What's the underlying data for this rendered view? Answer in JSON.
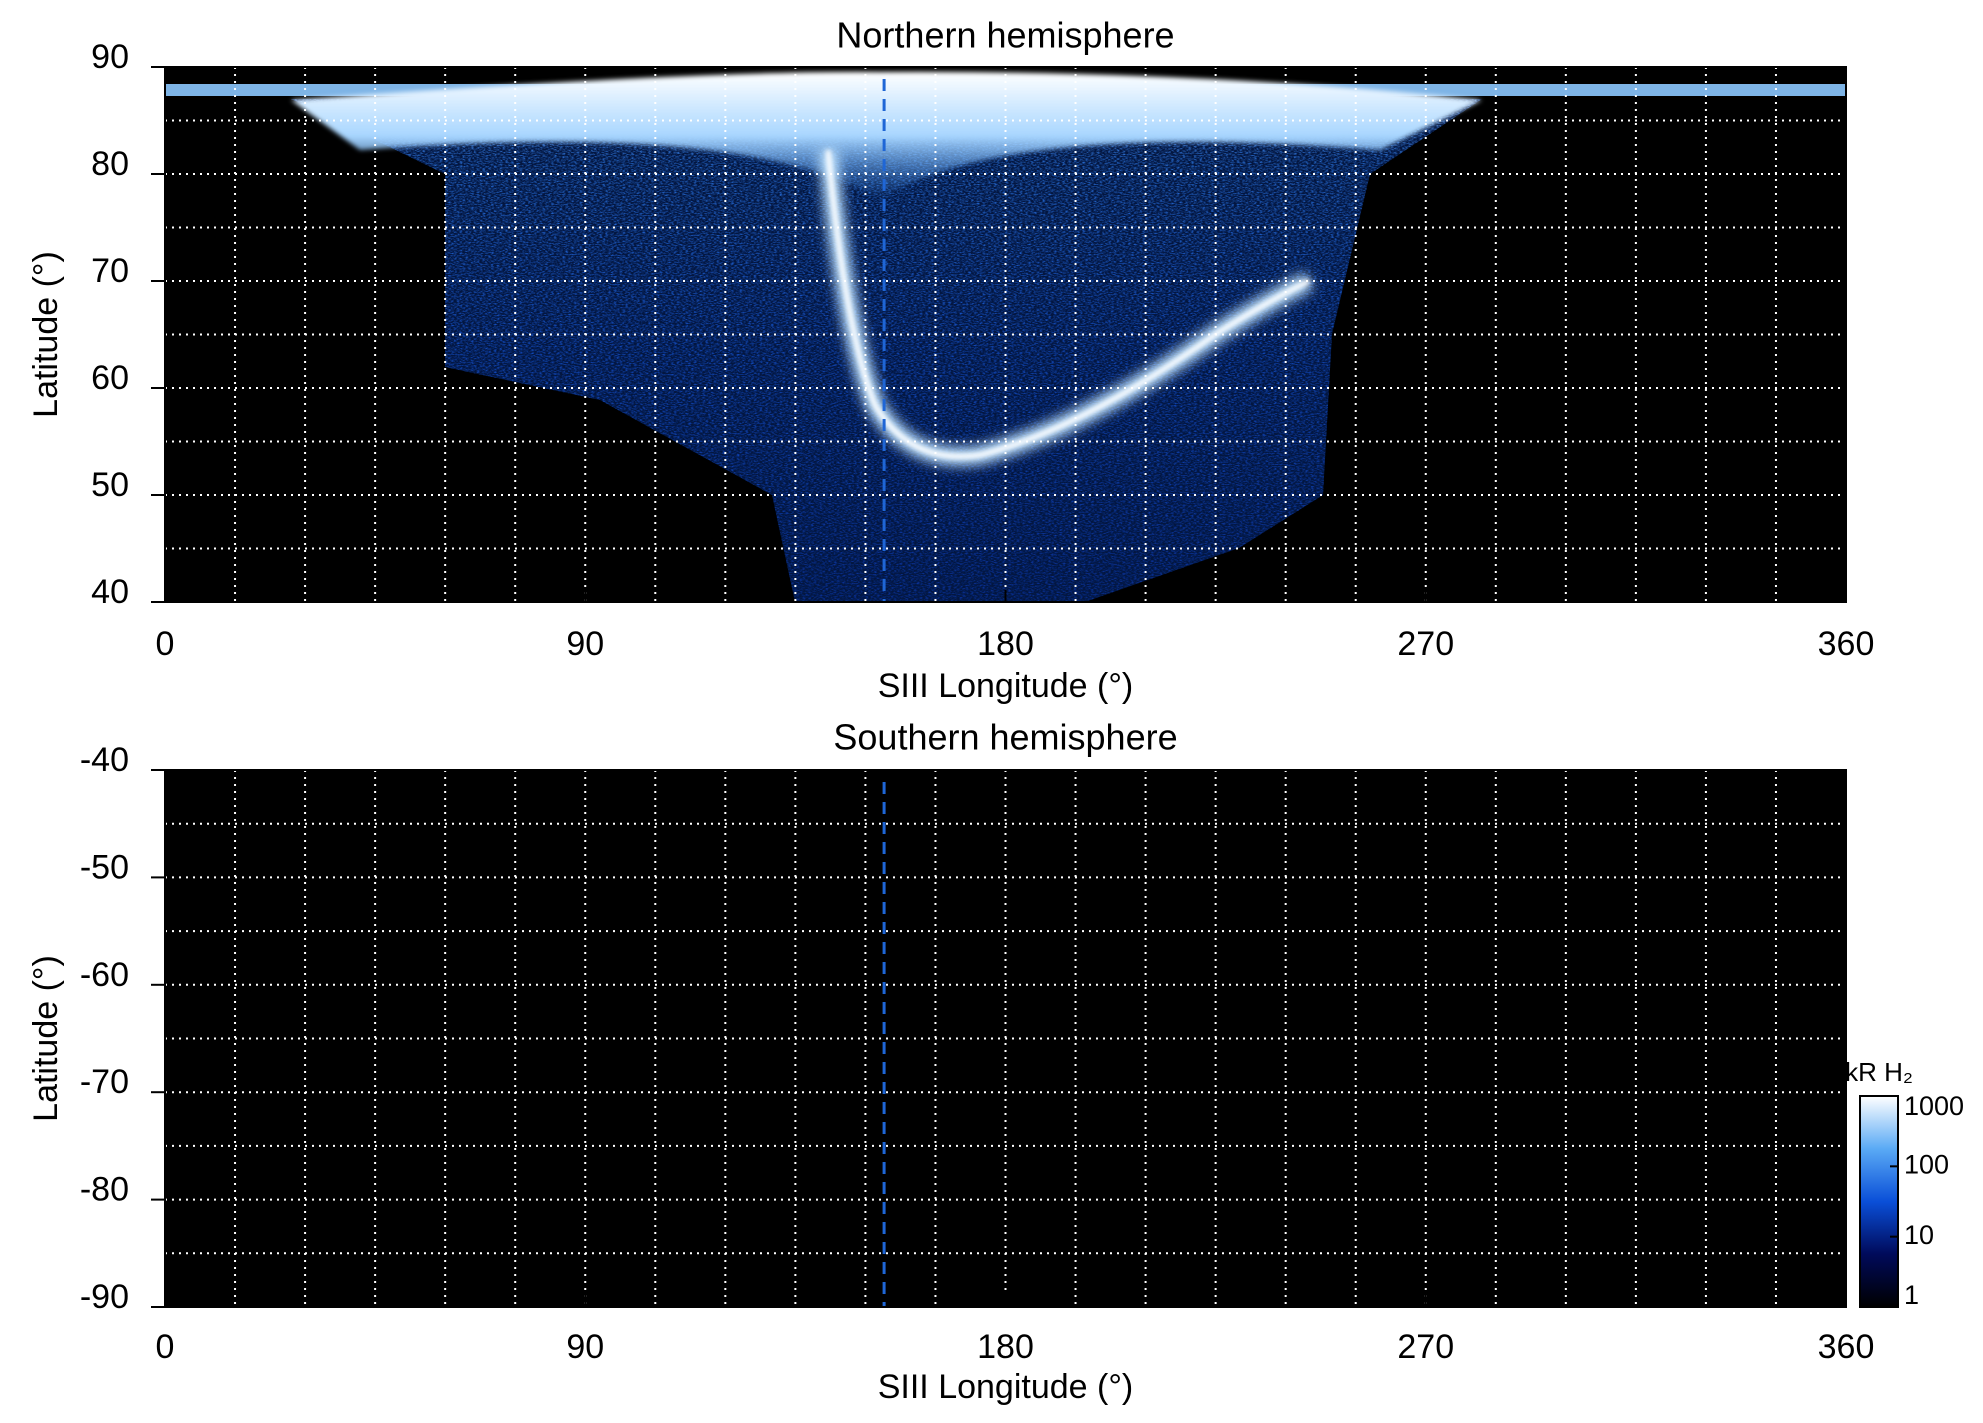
{
  "chart_data": [
    {
      "type": "heatmap",
      "title": "Northern hemisphere",
      "xlabel": "SIII Longitude (°)",
      "ylabel": "Latitude (°)",
      "xlim": [
        0,
        360
      ],
      "xticks": [
        0,
        90,
        180,
        270,
        360
      ],
      "ylim": [
        40,
        90
      ],
      "yticks": [
        40,
        50,
        60,
        70,
        80,
        90
      ],
      "grid": true,
      "xgrid_step": 15,
      "ygrid_step": 5,
      "vline_x": 154
    },
    {
      "type": "heatmap",
      "title": "Southern hemisphere",
      "xlabel": "SIII Longitude (°)",
      "ylabel": "Latitude (°)",
      "xlim": [
        0,
        360
      ],
      "xticks": [
        0,
        90,
        180,
        270,
        360
      ],
      "ylim": [
        -90,
        -40
      ],
      "yticks": [
        -90,
        -80,
        -70,
        -60,
        -50,
        -40
      ],
      "grid": true,
      "xgrid_step": 15,
      "ygrid_step": 5,
      "vline_x": 154
    }
  ],
  "colorbar": {
    "label": "kR H₂",
    "log": true,
    "lim": [
      1,
      1000
    ],
    "ticks": [
      1,
      10,
      100,
      1000
    ],
    "colors": [
      "#000000",
      "#000a5a",
      "#0a4fd8",
      "#5aaaf5",
      "#ffffff"
    ]
  }
}
